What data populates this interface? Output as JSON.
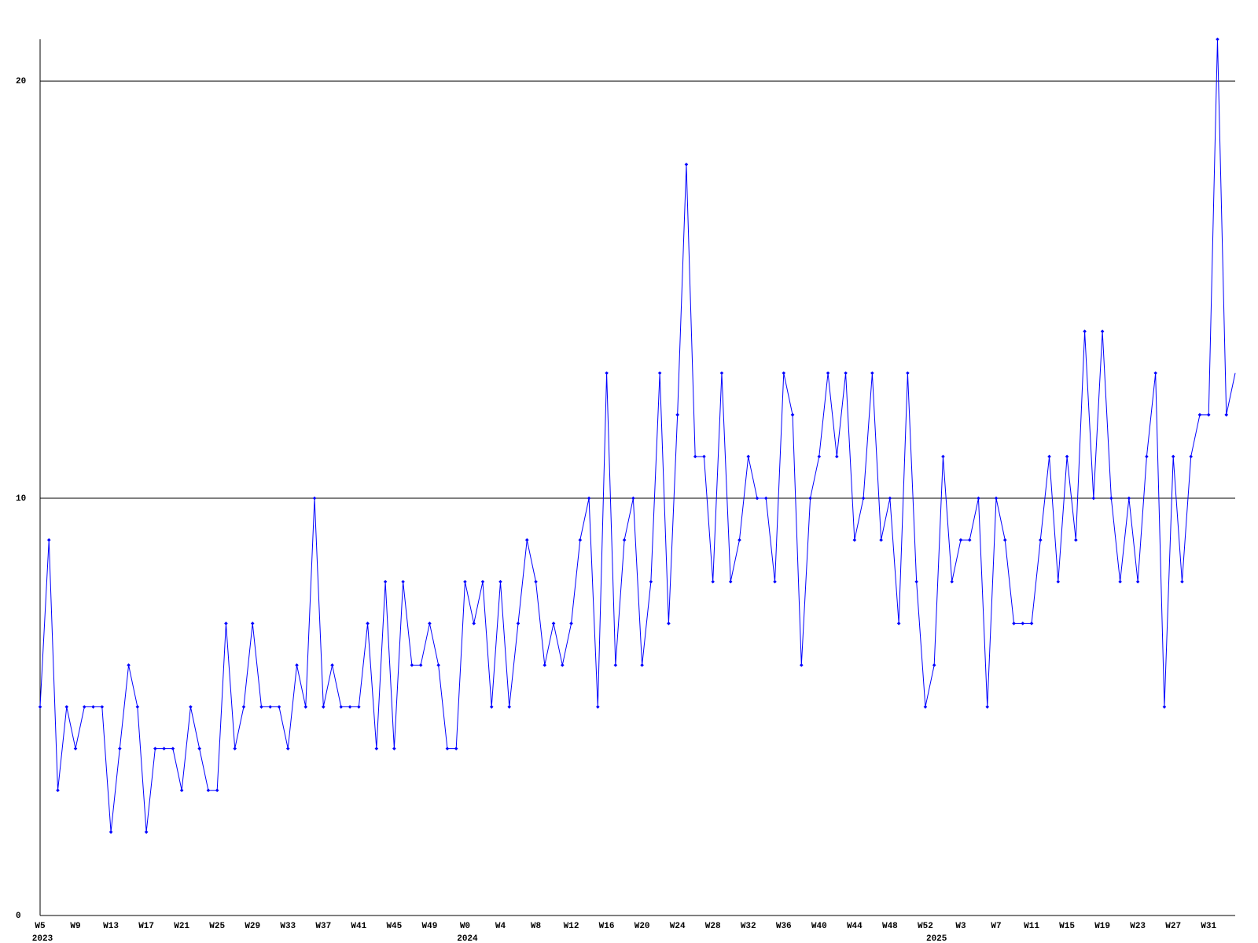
{
  "chart_data": {
    "type": "line",
    "categories": [
      "W5",
      null,
      null,
      null,
      "W9",
      null,
      null,
      null,
      "W13",
      null,
      null,
      null,
      "W17",
      null,
      null,
      null,
      "W21",
      null,
      null,
      null,
      "W25",
      null,
      null,
      null,
      "W29",
      null,
      null,
      null,
      "W33",
      null,
      null,
      null,
      "W37",
      null,
      null,
      null,
      "W41",
      null,
      null,
      null,
      "W45",
      null,
      null,
      null,
      "W49",
      null,
      null,
      null,
      "W0",
      null,
      null,
      null,
      "W4",
      null,
      null,
      null,
      "W8",
      null,
      null,
      null,
      "W12",
      null,
      null,
      null,
      "W16",
      null,
      null,
      null,
      "W20",
      null,
      null,
      null,
      "W24",
      null,
      null,
      null,
      "W28",
      null,
      null,
      null,
      "W32",
      null,
      null,
      null,
      "W36",
      null,
      null,
      null,
      "W40",
      null,
      null,
      null,
      "W44",
      null,
      null,
      null,
      "W48",
      null,
      null,
      null,
      "W52",
      null,
      null,
      null,
      "W3",
      null,
      null,
      null,
      "W7",
      null,
      null,
      null,
      "W11",
      null,
      null,
      null,
      "W15",
      null,
      null,
      null,
      "W19",
      null,
      null,
      null,
      "W23",
      null,
      null,
      null,
      "W27",
      null,
      null,
      null,
      "W31",
      null,
      null,
      null
    ],
    "category_years": [
      "2023",
      null,
      null,
      null,
      null,
      null,
      null,
      null,
      null,
      null,
      null,
      null,
      null,
      null,
      null,
      null,
      null,
      null,
      null,
      null,
      null,
      null,
      null,
      null,
      null,
      null,
      null,
      null,
      null,
      null,
      null,
      null,
      null,
      null,
      null,
      null,
      null,
      null,
      null,
      null,
      null,
      null,
      null,
      null,
      null,
      null,
      null,
      null,
      "2024",
      null,
      null,
      null,
      null,
      null,
      null,
      null,
      null,
      null,
      null,
      null,
      null,
      null,
      null,
      null,
      null,
      null,
      null,
      null,
      null,
      null,
      null,
      null,
      null,
      null,
      null,
      null,
      null,
      null,
      null,
      null,
      null,
      null,
      null,
      null,
      null,
      null,
      null,
      null,
      null,
      null,
      null,
      null,
      null,
      null,
      null,
      null,
      null,
      null,
      null,
      null,
      null,
      "2025",
      null,
      null,
      null,
      null,
      null,
      null,
      null,
      null,
      null,
      null,
      null,
      null,
      null,
      null,
      null,
      null,
      null,
      null,
      null,
      null,
      null,
      null,
      null,
      null,
      null,
      null,
      null,
      null,
      null,
      null,
      null,
      null,
      null,
      null
    ],
    "series": [
      {
        "color": "#0000ff",
        "values": [
          5,
          9,
          3,
          5,
          4,
          5,
          5,
          5,
          2,
          4,
          6,
          5,
          2,
          4,
          4,
          4,
          3,
          5,
          4,
          3,
          3,
          7,
          4,
          5,
          7,
          5,
          5,
          5,
          4,
          6,
          5,
          10,
          5,
          6,
          5,
          5,
          5,
          7,
          4,
          8,
          4,
          8,
          6,
          6,
          7,
          6,
          4,
          4,
          8,
          7,
          8,
          5,
          8,
          5,
          7,
          9,
          8,
          6,
          7,
          6,
          7,
          9,
          10,
          5,
          13,
          6,
          9,
          10,
          6,
          8,
          13,
          7,
          12,
          18,
          11,
          11,
          8,
          13,
          8,
          9,
          11,
          10,
          10,
          8,
          13,
          12,
          6,
          10,
          11,
          13,
          11,
          13,
          9,
          10,
          13,
          9,
          10,
          7,
          13,
          8,
          5,
          6,
          11,
          8,
          9,
          9,
          10,
          5,
          10,
          9,
          7,
          7,
          7,
          9,
          11,
          8,
          11,
          9,
          14,
          10,
          14,
          10,
          8,
          10,
          8,
          11,
          13,
          5,
          11,
          8,
          11,
          12,
          12,
          21,
          12,
          13
        ]
      }
    ],
    "ylim": [
      0,
      21
    ],
    "yticks": [
      0,
      10,
      20
    ],
    "grid": true
  }
}
